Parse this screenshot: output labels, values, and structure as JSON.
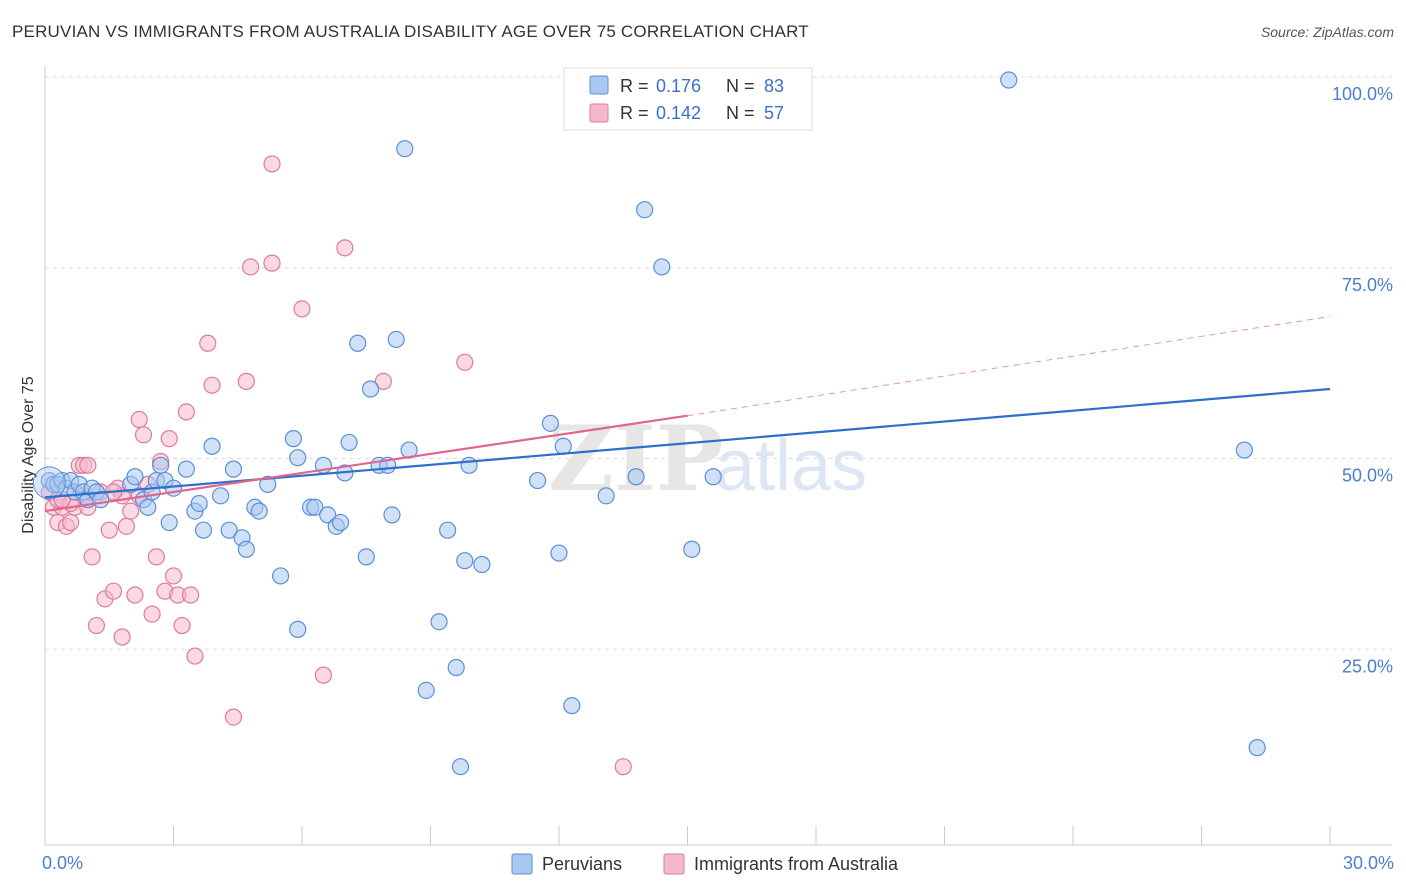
{
  "header": {
    "title": "PERUVIAN VS IMMIGRANTS FROM AUSTRALIA DISABILITY AGE OVER 75 CORRELATION CHART",
    "source": "Source: ZipAtlas.com"
  },
  "legend_top": {
    "rows": [
      {
        "r_label": "R = ",
        "r_value": "0.176",
        "n_label": "N = ",
        "n_value": "83"
      },
      {
        "r_label": "R = ",
        "r_value": "0.142",
        "n_label": "N = ",
        "n_value": "57"
      }
    ]
  },
  "legend_bottom": {
    "items": [
      "Peruvians",
      "Immigrants from Australia"
    ]
  },
  "axes": {
    "y_title": "Disability Age Over 75",
    "x_min_label": "0.0%",
    "x_max_label": "30.0%",
    "y_ticks": [
      "100.0%",
      "75.0%",
      "50.0%",
      "25.0%"
    ]
  },
  "watermark": {
    "zip": "ZIP",
    "atlas": "atlas"
  },
  "colors": {
    "peruvians_fill": "#a9c8f0",
    "peruvians_stroke": "#5b8fd6",
    "peruvians_line": "#2e6fce",
    "australia_fill": "#f6b9cc",
    "australia_stroke": "#e07a9c",
    "australia_line": "#e0668f",
    "grid": "#dddddd"
  },
  "chart_data": {
    "type": "scatter",
    "xlabel": "",
    "ylabel": "Disability Age Over 75",
    "xlim": [
      0,
      30
    ],
    "ylim": [
      0,
      100
    ],
    "x_ticks": [
      0,
      30
    ],
    "y_ticks": [
      25,
      50,
      75,
      100
    ],
    "grid": true,
    "legend": "top-center",
    "series": [
      {
        "name": "Peruvians",
        "r": 0.176,
        "n": 83,
        "trend": {
          "x0": 0,
          "y0": 45.3,
          "x1": 30,
          "y1": 59.5,
          "dashed_from": null
        },
        "points": [
          [
            0.1,
            47.5
          ],
          [
            0.2,
            47.0
          ],
          [
            0.3,
            47.0
          ],
          [
            0.4,
            47.5
          ],
          [
            0.5,
            46.5
          ],
          [
            0.6,
            47.5
          ],
          [
            0.7,
            46.0
          ],
          [
            0.8,
            47.0
          ],
          [
            0.9,
            46.0
          ],
          [
            1.0,
            45.0
          ],
          [
            1.1,
            46.5
          ],
          [
            1.2,
            46.0
          ],
          [
            1.3,
            45.0
          ],
          [
            2.0,
            47.0
          ],
          [
            2.1,
            48.0
          ],
          [
            2.3,
            45.0
          ],
          [
            2.4,
            44.0
          ],
          [
            2.5,
            46.0
          ],
          [
            2.6,
            47.5
          ],
          [
            2.7,
            49.5
          ],
          [
            2.8,
            47.5
          ],
          [
            2.9,
            42.0
          ],
          [
            3.0,
            46.5
          ],
          [
            3.3,
            49.0
          ],
          [
            3.5,
            43.5
          ],
          [
            3.6,
            44.5
          ],
          [
            3.7,
            41.0
          ],
          [
            3.9,
            52.0
          ],
          [
            4.1,
            45.5
          ],
          [
            4.3,
            41.0
          ],
          [
            4.4,
            49.0
          ],
          [
            4.6,
            40.0
          ],
          [
            4.7,
            38.5
          ],
          [
            4.9,
            44.0
          ],
          [
            5.0,
            43.5
          ],
          [
            5.2,
            47.0
          ],
          [
            5.5,
            35.0
          ],
          [
            5.8,
            53.0
          ],
          [
            5.9,
            28.0
          ],
          [
            5.9,
            50.5
          ],
          [
            6.2,
            44.0
          ],
          [
            6.3,
            44.0
          ],
          [
            6.5,
            49.5
          ],
          [
            6.6,
            43.0
          ],
          [
            6.8,
            41.5
          ],
          [
            6.9,
            42.0
          ],
          [
            7.0,
            48.5
          ],
          [
            7.1,
            52.5
          ],
          [
            7.3,
            65.5
          ],
          [
            7.5,
            37.5
          ],
          [
            7.6,
            59.5
          ],
          [
            7.8,
            49.5
          ],
          [
            8.0,
            49.5
          ],
          [
            8.1,
            43.0
          ],
          [
            8.2,
            66.0
          ],
          [
            8.4,
            91.0
          ],
          [
            8.5,
            51.5
          ],
          [
            8.9,
            20.0
          ],
          [
            9.2,
            29.0
          ],
          [
            9.4,
            41.0
          ],
          [
            9.6,
            23.0
          ],
          [
            9.7,
            10.0
          ],
          [
            9.8,
            37.0
          ],
          [
            9.9,
            49.5
          ],
          [
            10.2,
            36.5
          ],
          [
            11.5,
            47.5
          ],
          [
            11.8,
            55.0
          ],
          [
            12.0,
            38.0
          ],
          [
            12.1,
            52.0
          ],
          [
            12.3,
            18.0
          ],
          [
            13.1,
            45.5
          ],
          [
            13.8,
            48.0
          ],
          [
            14.0,
            83.0
          ],
          [
            14.4,
            75.5
          ],
          [
            15.1,
            38.5
          ],
          [
            15.6,
            48.0
          ],
          [
            22.5,
            100.0
          ],
          [
            28.0,
            51.5
          ],
          [
            28.3,
            12.5
          ]
        ]
      },
      {
        "name": "Immigrants from Australia",
        "r": 0.142,
        "n": 57,
        "trend": {
          "x0": 0,
          "y0": 43.5,
          "x1": 15,
          "y1": 56.0,
          "dashed_to": {
            "x": 30,
            "y": 69.0
          }
        },
        "points": [
          [
            0.1,
            46.0
          ],
          [
            0.2,
            44.0
          ],
          [
            0.3,
            42.0
          ],
          [
            0.4,
            44.0
          ],
          [
            0.5,
            41.5
          ],
          [
            0.6,
            42.0
          ],
          [
            0.7,
            44.0
          ],
          [
            0.8,
            49.5
          ],
          [
            0.9,
            49.5
          ],
          [
            1.0,
            49.5
          ],
          [
            1.1,
            37.5
          ],
          [
            1.2,
            28.5
          ],
          [
            1.4,
            32.0
          ],
          [
            1.5,
            41.0
          ],
          [
            1.6,
            33.0
          ],
          [
            1.7,
            46.5
          ],
          [
            1.8,
            45.5
          ],
          [
            1.8,
            27.0
          ],
          [
            1.9,
            41.5
          ],
          [
            2.0,
            43.5
          ],
          [
            2.1,
            32.5
          ],
          [
            2.2,
            55.5
          ],
          [
            2.3,
            53.5
          ],
          [
            2.4,
            47.0
          ],
          [
            2.5,
            30.0
          ],
          [
            2.6,
            37.5
          ],
          [
            2.7,
            50.0
          ],
          [
            2.8,
            33.0
          ],
          [
            2.9,
            53.0
          ],
          [
            3.0,
            35.0
          ],
          [
            3.1,
            32.5
          ],
          [
            3.2,
            28.5
          ],
          [
            3.3,
            56.5
          ],
          [
            3.4,
            32.5
          ],
          [
            3.5,
            24.5
          ],
          [
            3.8,
            65.5
          ],
          [
            3.9,
            60.0
          ],
          [
            4.4,
            16.5
          ],
          [
            4.7,
            60.5
          ],
          [
            4.8,
            75.5
          ],
          [
            5.3,
            76.0
          ],
          [
            5.3,
            89.0
          ],
          [
            6.0,
            70.0
          ],
          [
            6.5,
            22.0
          ],
          [
            7.0,
            78.0
          ],
          [
            7.9,
            60.5
          ],
          [
            9.8,
            63.0
          ],
          [
            13.5,
            10.0
          ],
          [
            0.3,
            45.0
          ],
          [
            0.6,
            44.5
          ],
          [
            0.9,
            45.5
          ],
          [
            1.3,
            46.0
          ],
          [
            0.2,
            47.0
          ],
          [
            0.4,
            45.0
          ],
          [
            1.6,
            46.0
          ],
          [
            2.2,
            45.5
          ],
          [
            1.0,
            44.0
          ]
        ]
      }
    ]
  }
}
